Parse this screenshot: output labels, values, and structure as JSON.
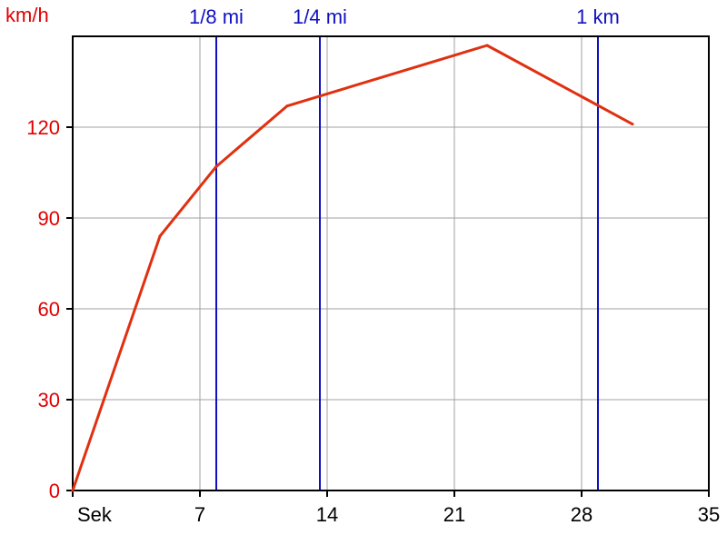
{
  "chart_data": {
    "type": "line",
    "y_unit_label": "km/h",
    "x_unit_label": "Sek",
    "xlim": [
      0,
      35
    ],
    "ylim": [
      0,
      150
    ],
    "x_ticks": [
      {
        "value": 7,
        "label": "7"
      },
      {
        "value": 14,
        "label": "14"
      },
      {
        "value": 21,
        "label": "21"
      },
      {
        "value": 28,
        "label": "28"
      },
      {
        "value": 35,
        "label": "35"
      }
    ],
    "y_ticks": [
      {
        "value": 0,
        "label": "0"
      },
      {
        "value": 30,
        "label": "30"
      },
      {
        "value": 60,
        "label": "60"
      },
      {
        "value": 90,
        "label": "90"
      },
      {
        "value": 120,
        "label": "120"
      }
    ],
    "grid": true,
    "series": [
      {
        "color": "#e03010",
        "points": [
          {
            "x": 0,
            "y": 0
          },
          {
            "x": 4.8,
            "y": 84
          },
          {
            "x": 7.9,
            "y": 107
          },
          {
            "x": 11.8,
            "y": 127
          },
          {
            "x": 22.8,
            "y": 147
          },
          {
            "x": 30.8,
            "y": 121
          }
        ]
      }
    ],
    "distance_markers": [
      {
        "label": "1/8 mi",
        "x": 7.9
      },
      {
        "label": "1/4 mi",
        "x": 13.6
      },
      {
        "label": "1 km",
        "x": 28.9
      }
    ],
    "colors": {
      "series": "#e03010",
      "markers": "#1010c0",
      "y_axis_text": "#e00000",
      "grid": "#a0a0a0",
      "axes": "#000000"
    }
  }
}
